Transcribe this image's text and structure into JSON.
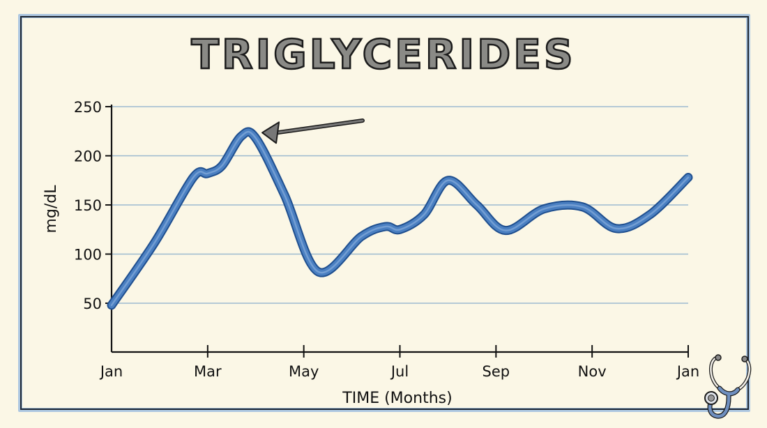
{
  "chart_data": {
    "type": "line",
    "title": "TRIGLYCERIDES",
    "xlabel": "TIME (Months)",
    "ylabel": "mg/dL",
    "ylim": [
      0,
      250
    ],
    "yticks": [
      50,
      100,
      150,
      200,
      250
    ],
    "xticks": [
      "Jan",
      "Mar",
      "May",
      "Jul",
      "Sep",
      "Nov",
      "Jan"
    ],
    "grid": true,
    "legend": null,
    "series": [
      {
        "name": "Triglycerides",
        "color": "#4a7fc1",
        "x": [
          0,
          0.9,
          1.7,
          2.0,
          2.3,
          2.7,
          3.0,
          3.6,
          4.3,
          5.2,
          5.7,
          6.0,
          6.5,
          7.0,
          7.6,
          8.2,
          9.0,
          9.8,
          10.5,
          11.2,
          12.0
        ],
        "values": [
          48,
          112,
          178,
          182,
          190,
          220,
          218,
          160,
          82,
          118,
          128,
          125,
          140,
          175,
          150,
          124,
          146,
          148,
          126,
          140,
          178
        ]
      }
    ],
    "annotations": [
      {
        "type": "arrow",
        "points_to": "peak",
        "x": 2.7,
        "y": 220
      }
    ]
  },
  "decoration": {
    "icon": "stethoscope-icon",
    "line_color": "#4a7fc1",
    "grid_color": "#9cbad0",
    "frame_color": "#9fbedf",
    "background": "#fbf7e6"
  }
}
